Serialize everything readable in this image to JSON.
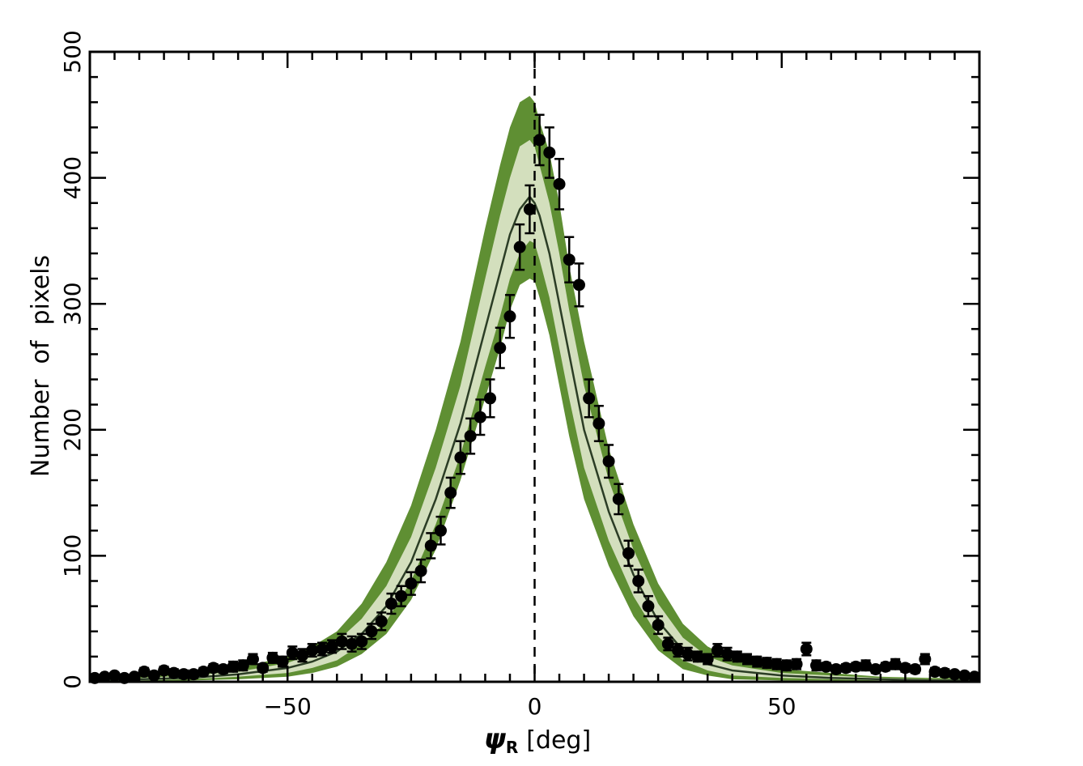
{
  "chart_data": {
    "type": "scatter",
    "xlabel_symbol": "ψ",
    "xlabel_subscript": "R",
    "xlabel_unit": "[deg]",
    "ylabel": "Number  of  pixels",
    "xlim": [
      -90,
      90
    ],
    "ylim": [
      0,
      500
    ],
    "xticks": [
      -50,
      0,
      50
    ],
    "xtick_labels": [
      "−50",
      "0",
      "50"
    ],
    "yticks": [
      0,
      100,
      200,
      300,
      400,
      500
    ],
    "ytick_labels": [
      "0",
      "100",
      "200",
      "300",
      "400",
      "500"
    ],
    "reference_line_x": 0,
    "colors": {
      "outer_band": "#5f8f33",
      "inner_band": "#d3dfbd",
      "model_line": "#2b3d25",
      "points": "#000000"
    },
    "model_band": {
      "x": [
        -90,
        -80,
        -70,
        -60,
        -50,
        -45,
        -40,
        -35,
        -30,
        -25,
        -20,
        -15,
        -10,
        -7,
        -5,
        -3,
        -1,
        0,
        1,
        3,
        5,
        7,
        10,
        15,
        20,
        25,
        30,
        35,
        40,
        50,
        60,
        70,
        80,
        90
      ],
      "median": [
        1,
        2,
        3,
        6,
        11,
        16,
        24,
        38,
        60,
        95,
        145,
        205,
        280,
        325,
        355,
        375,
        385,
        380,
        370,
        340,
        300,
        260,
        200,
        135,
        85,
        48,
        25,
        14,
        9,
        5,
        3,
        2,
        1,
        1
      ],
      "inner_low": [
        0,
        1,
        2,
        4,
        7,
        11,
        17,
        30,
        48,
        80,
        125,
        180,
        250,
        290,
        320,
        340,
        350,
        348,
        335,
        305,
        265,
        225,
        170,
        112,
        68,
        36,
        17,
        9,
        5,
        3,
        2,
        1,
        0,
        0
      ],
      "inner_high": [
        2,
        3,
        5,
        8,
        15,
        22,
        32,
        50,
        76,
        115,
        170,
        235,
        320,
        370,
        400,
        425,
        430,
        425,
        410,
        380,
        340,
        295,
        235,
        160,
        105,
        62,
        35,
        20,
        13,
        7,
        5,
        3,
        2,
        2
      ],
      "outer_low": [
        0,
        0,
        1,
        2,
        4,
        7,
        12,
        22,
        38,
        65,
        105,
        160,
        225,
        265,
        295,
        315,
        320,
        318,
        305,
        275,
        235,
        195,
        145,
        92,
        52,
        25,
        10,
        5,
        2,
        1,
        1,
        0,
        0,
        0
      ],
      "outer_high": [
        3,
        5,
        7,
        11,
        20,
        28,
        40,
        62,
        95,
        140,
        200,
        270,
        360,
        410,
        440,
        460,
        465,
        460,
        445,
        420,
        380,
        330,
        270,
        185,
        125,
        78,
        46,
        28,
        18,
        10,
        7,
        4,
        3,
        3
      ]
    },
    "points": {
      "x": [
        -89,
        -87,
        -85,
        -83,
        -81,
        -79,
        -77,
        -75,
        -73,
        -71,
        -69,
        -67,
        -65,
        -63,
        -61,
        -59,
        -57,
        -55,
        -53,
        -51,
        -49,
        -47,
        -45,
        -43,
        -41,
        -39,
        -37,
        -35,
        -33,
        -31,
        -29,
        -27,
        -25,
        -23,
        -21,
        -19,
        -17,
        -15,
        -13,
        -11,
        -9,
        -7,
        -5,
        -3,
        -1,
        1,
        3,
        5,
        7,
        9,
        11,
        13,
        15,
        17,
        19,
        21,
        23,
        25,
        27,
        29,
        31,
        33,
        35,
        37,
        39,
        41,
        43,
        45,
        47,
        49,
        51,
        53,
        55,
        57,
        59,
        61,
        63,
        65,
        67,
        69,
        71,
        73,
        75,
        77,
        79,
        81,
        83,
        85,
        87,
        89
      ],
      "y": [
        3,
        4,
        5,
        3,
        4,
        8,
        5,
        9,
        7,
        6,
        6,
        8,
        11,
        10,
        12,
        13,
        18,
        11,
        19,
        16,
        23,
        21,
        25,
        26,
        28,
        32,
        30,
        32,
        40,
        48,
        62,
        68,
        78,
        88,
        108,
        120,
        150,
        178,
        195,
        210,
        225,
        265,
        290,
        345,
        375,
        430,
        420,
        395,
        335,
        315,
        225,
        205,
        175,
        145,
        102,
        80,
        60,
        45,
        30,
        25,
        22,
        20,
        18,
        25,
        22,
        20,
        18,
        16,
        15,
        14,
        13,
        14,
        26,
        13,
        12,
        10,
        11,
        12,
        13,
        10,
        12,
        14,
        11,
        10,
        18,
        8,
        7,
        6,
        5,
        4
      ],
      "yerr": [
        2,
        2,
        2,
        2,
        2,
        3,
        2,
        3,
        3,
        3,
        3,
        3,
        3,
        3,
        4,
        4,
        4,
        3,
        4,
        4,
        5,
        5,
        5,
        5,
        5,
        6,
        6,
        6,
        6,
        7,
        8,
        8,
        9,
        9,
        10,
        11,
        12,
        13,
        14,
        14,
        15,
        16,
        17,
        18,
        19,
        20,
        20,
        20,
        18,
        17,
        15,
        14,
        13,
        12,
        10,
        9,
        8,
        7,
        5,
        5,
        5,
        4,
        4,
        5,
        5,
        4,
        4,
        4,
        4,
        4,
        4,
        4,
        5,
        4,
        3,
        3,
        3,
        3,
        4,
        3,
        3,
        4,
        3,
        3,
        4,
        3,
        3,
        2,
        2,
        2
      ]
    }
  }
}
